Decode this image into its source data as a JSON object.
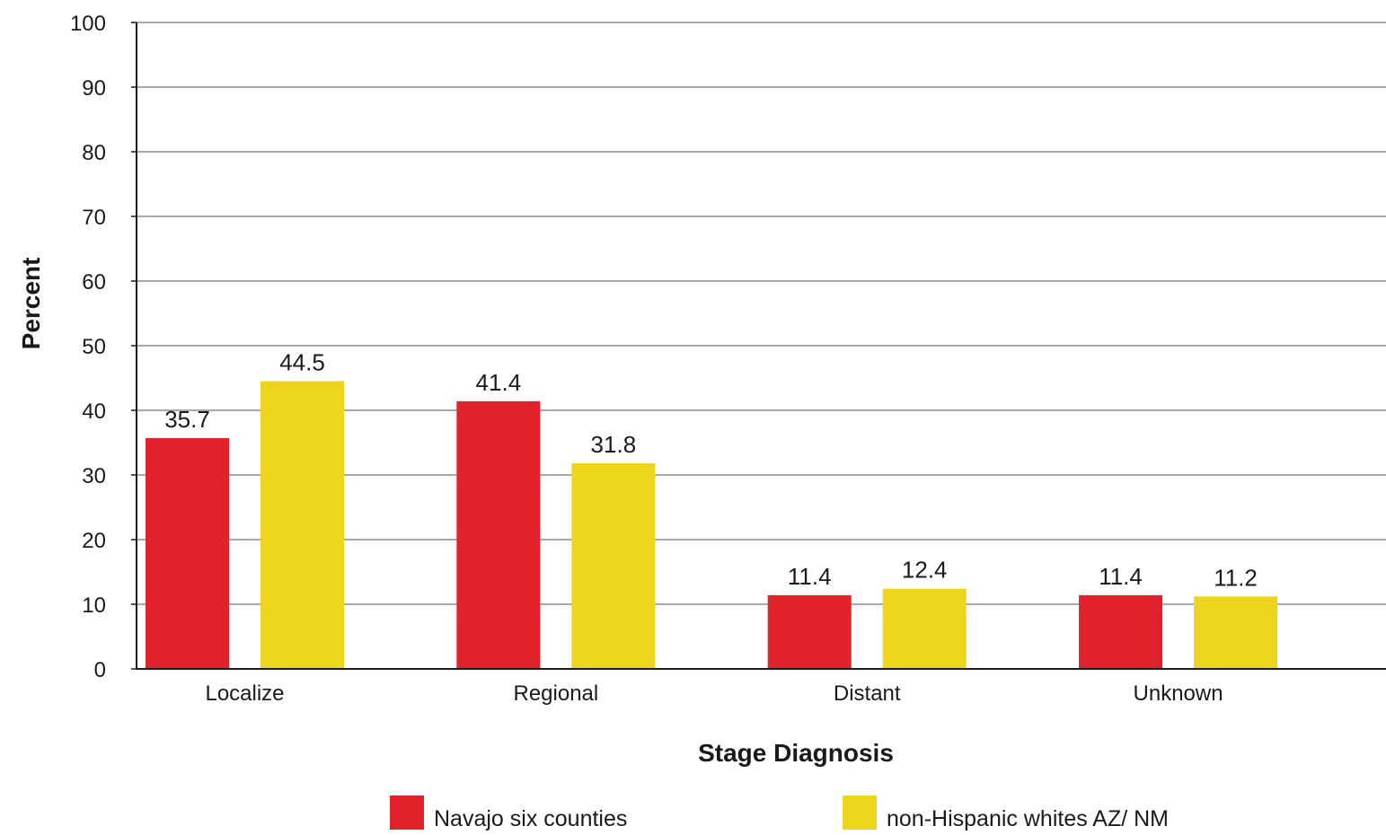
{
  "chart_data": {
    "type": "bar",
    "categories": [
      "Localize",
      "Regional",
      "Distant",
      "Unknown"
    ],
    "series": [
      {
        "name": "Navajo six counties",
        "color": "#e0232a",
        "values": [
          35.7,
          41.4,
          11.4,
          11.4
        ]
      },
      {
        "name": "non-Hispanic whites AZ/ NM",
        "color": "#ecd51c",
        "values": [
          44.5,
          31.8,
          12.4,
          11.2
        ]
      }
    ],
    "data_labels": [
      [
        "35.7",
        "41.4",
        "11.4",
        "11.4"
      ],
      [
        "44.5",
        "31.8",
        "12.4",
        "11.2"
      ]
    ],
    "xlabel": "Stage Diagnosis",
    "ylabel": "Percent",
    "ylim": [
      0,
      100
    ],
    "yticks": [
      "0",
      "10",
      "20",
      "30",
      "40",
      "50",
      "60",
      "70",
      "80",
      "90",
      "100"
    ],
    "grid": true,
    "legend_position": "bottom"
  }
}
